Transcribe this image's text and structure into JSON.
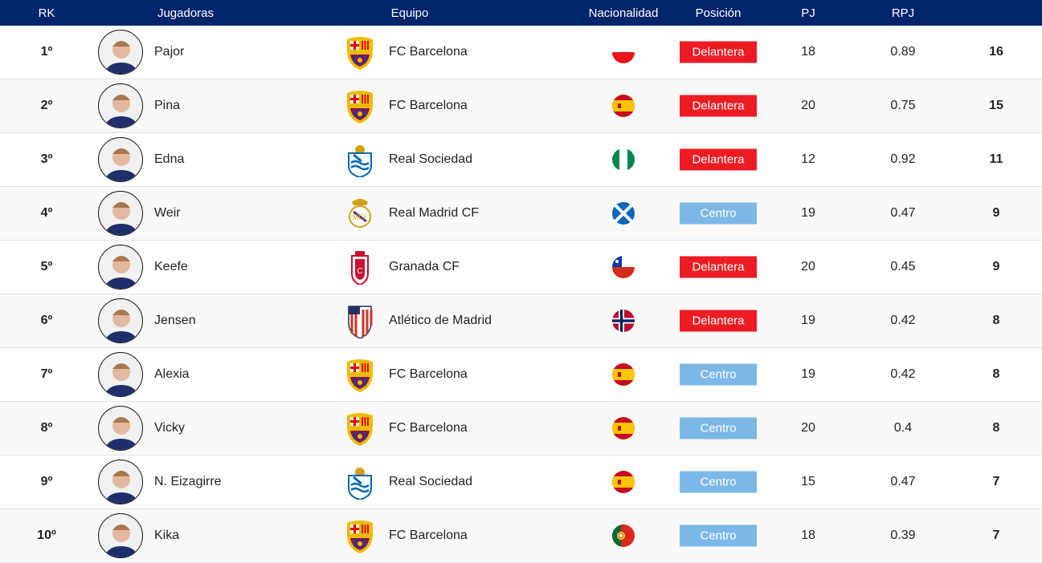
{
  "header": {
    "rk": "RK",
    "players": "Jugadoras",
    "team": "Equipo",
    "nat": "Nacionalidad",
    "pos": "Posición",
    "pj": "PJ",
    "rpj": "RPJ"
  },
  "colors": {
    "header_bg": "#00256b",
    "delantera": "#ec1c24",
    "centro": "#7cb8e6"
  },
  "rows": [
    {
      "rk": "1º",
      "name": "Pajor",
      "team": "FC Barcelona",
      "crest": "barcelona",
      "flag": "poland",
      "pos": "Delantera",
      "pj": "18",
      "rpj": "0.89",
      "g": "16"
    },
    {
      "rk": "2º",
      "name": "Pina",
      "team": "FC Barcelona",
      "crest": "barcelona",
      "flag": "spain",
      "pos": "Delantera",
      "pj": "20",
      "rpj": "0.75",
      "g": "15"
    },
    {
      "rk": "3º",
      "name": "Edna",
      "team": "Real Sociedad",
      "crest": "realsociedad",
      "flag": "nigeria",
      "pos": "Delantera",
      "pj": "12",
      "rpj": "0.92",
      "g": "11"
    },
    {
      "rk": "4º",
      "name": "Weir",
      "team": "Real Madrid CF",
      "crest": "realmadrid",
      "flag": "scotland",
      "pos": "Centro",
      "pj": "19",
      "rpj": "0.47",
      "g": "9"
    },
    {
      "rk": "5º",
      "name": "Keefe",
      "team": "Granada CF",
      "crest": "granada",
      "flag": "chile",
      "pos": "Delantera",
      "pj": "20",
      "rpj": "0.45",
      "g": "9"
    },
    {
      "rk": "6º",
      "name": "Jensen",
      "team": "Atlético de Madrid",
      "crest": "atletico",
      "flag": "norway",
      "pos": "Delantera",
      "pj": "19",
      "rpj": "0.42",
      "g": "8"
    },
    {
      "rk": "7º",
      "name": "Alexia",
      "team": "FC Barcelona",
      "crest": "barcelona",
      "flag": "spain",
      "pos": "Centro",
      "pj": "19",
      "rpj": "0.42",
      "g": "8"
    },
    {
      "rk": "8º",
      "name": "Vicky",
      "team": "FC Barcelona",
      "crest": "barcelona",
      "flag": "spain",
      "pos": "Centro",
      "pj": "20",
      "rpj": "0.4",
      "g": "8"
    },
    {
      "rk": "9º",
      "name": "N. Eizagirre",
      "team": "Real Sociedad",
      "crest": "realsociedad",
      "flag": "spain",
      "pos": "Centro",
      "pj": "15",
      "rpj": "0.47",
      "g": "7"
    },
    {
      "rk": "10º",
      "name": "Kika",
      "team": "FC Barcelona",
      "crest": "barcelona",
      "flag": "portugal",
      "pos": "Centro",
      "pj": "18",
      "rpj": "0.39",
      "g": "7"
    }
  ]
}
